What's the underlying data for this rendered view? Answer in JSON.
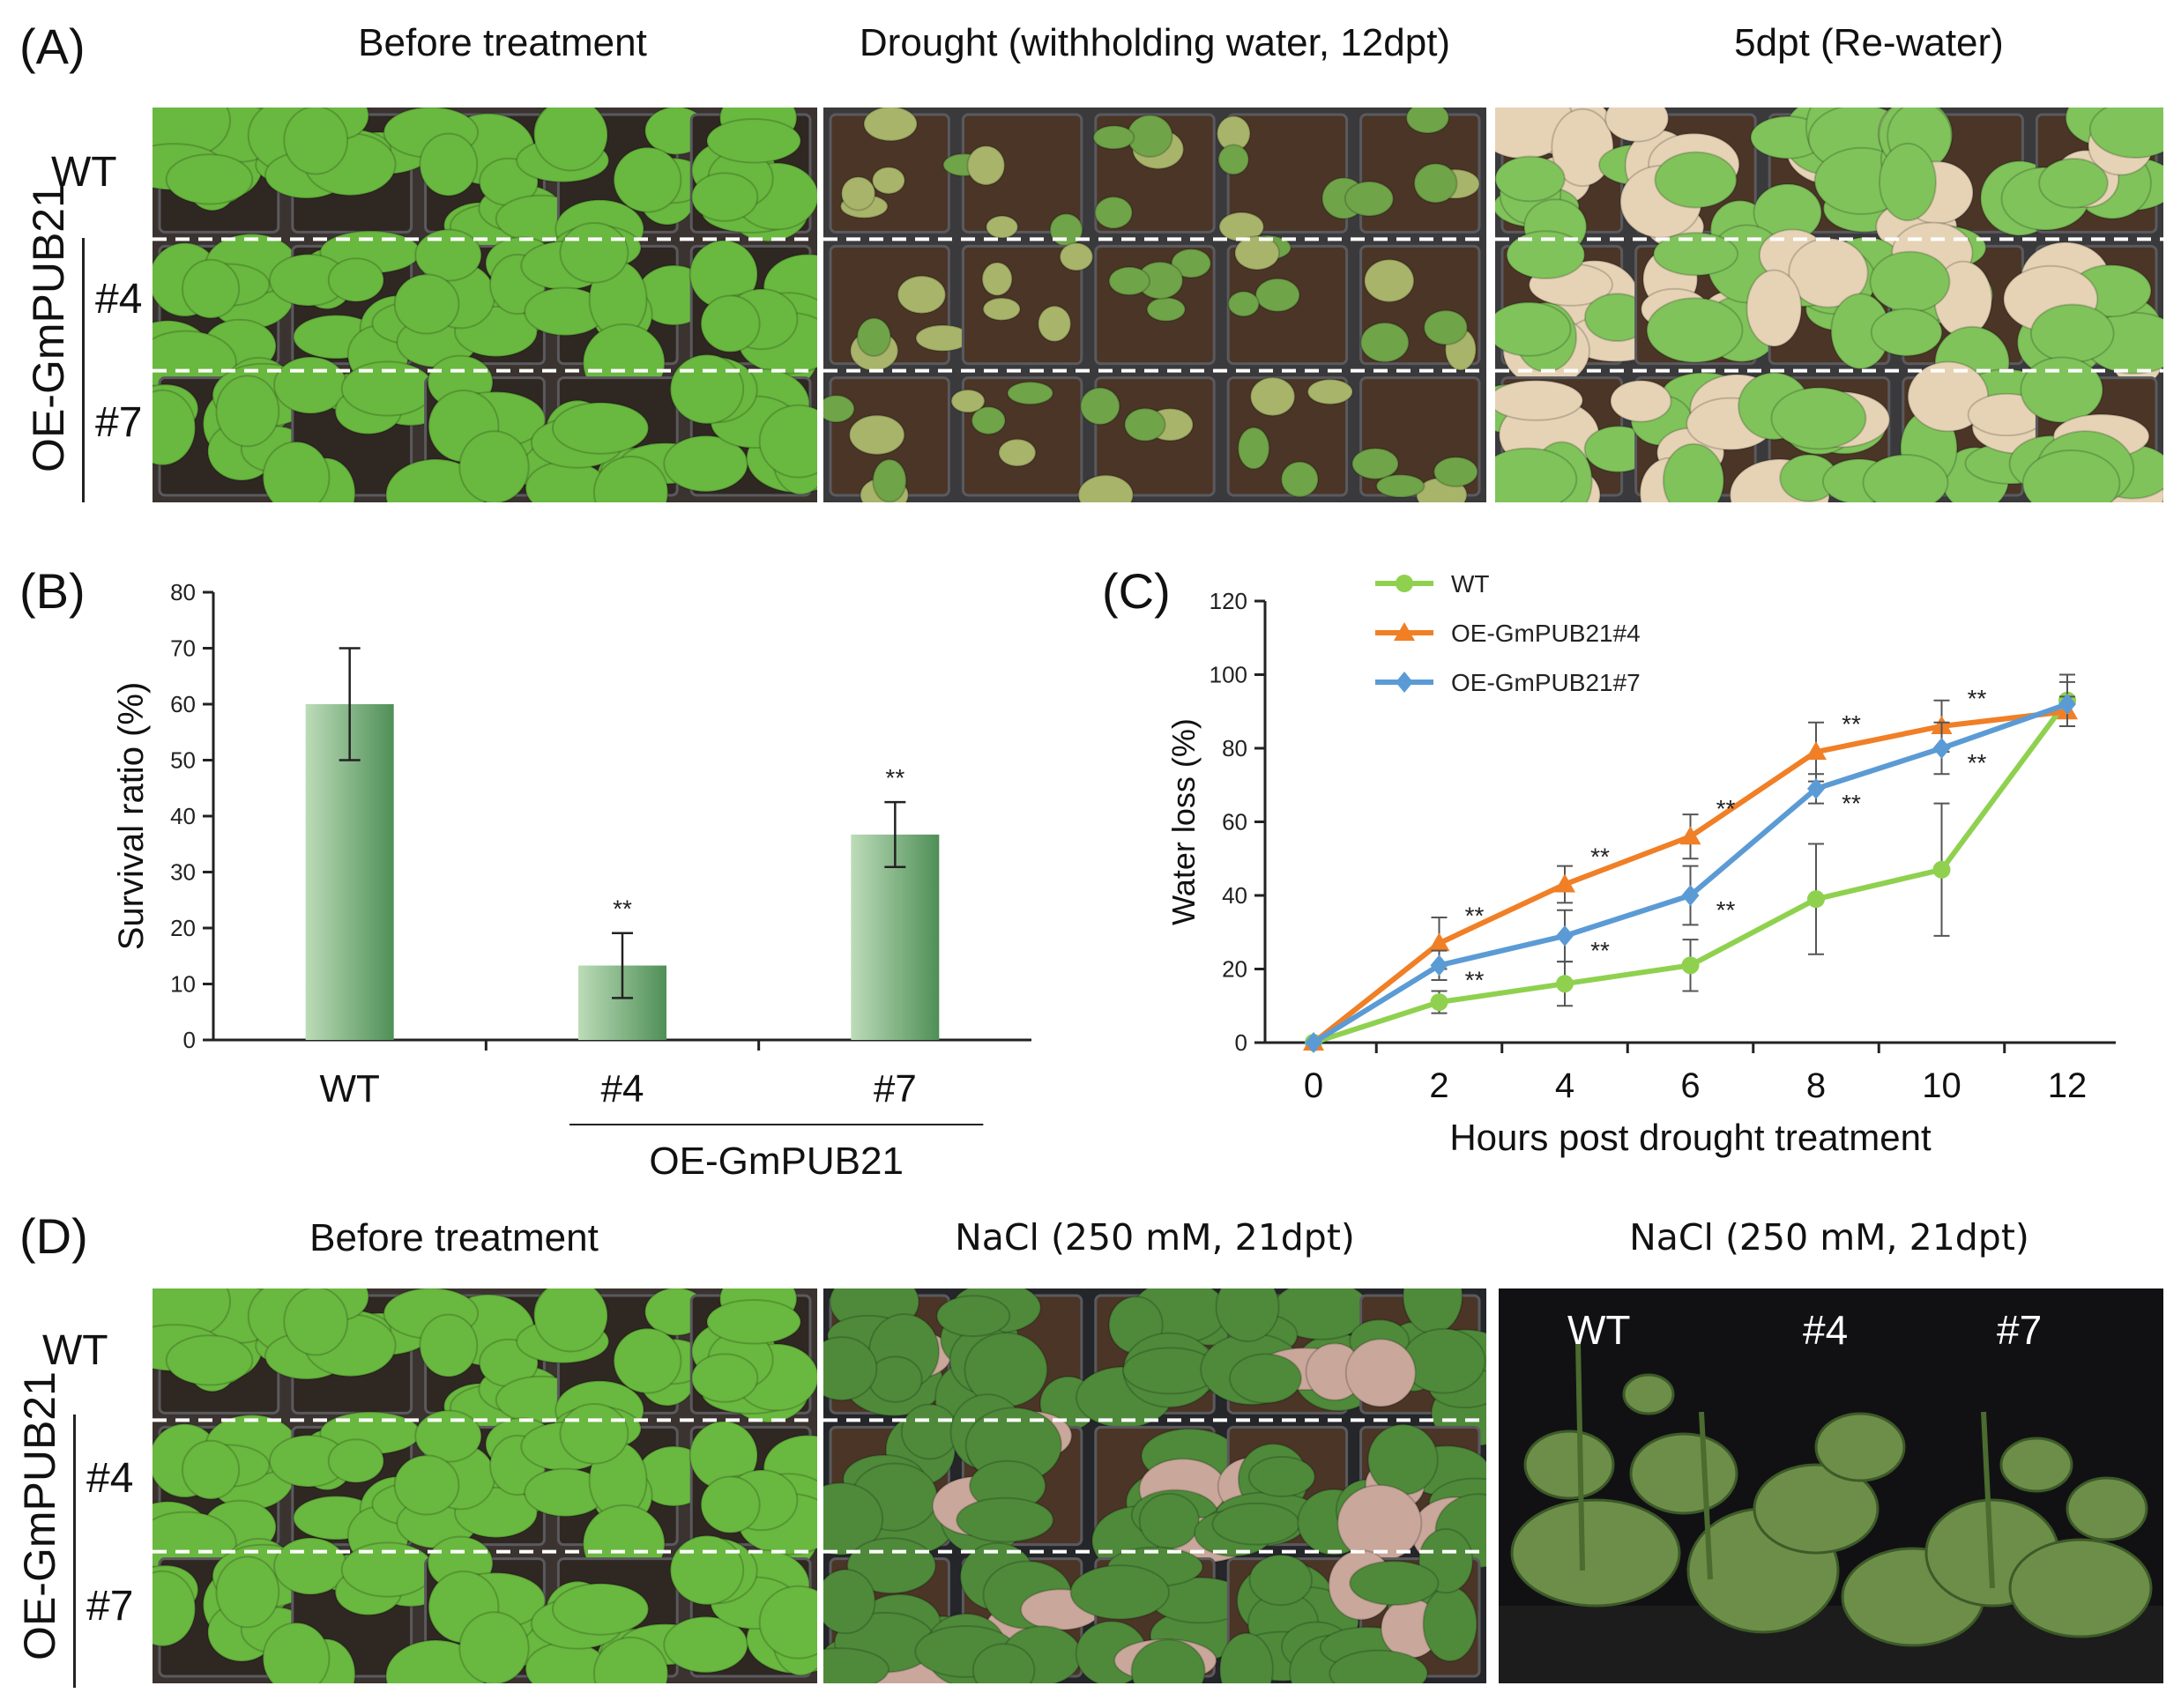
{
  "panels": {
    "A": {
      "letter": "(A)",
      "columns": [
        "Before treatment",
        "Drought (withholding water, 12dpt)",
        "5dpt (Re-water)"
      ],
      "rows": {
        "wt": "WT",
        "line4": "#4",
        "line7": "#7",
        "group": "OE-GmPUB21"
      }
    },
    "B": {
      "letter": "(B)"
    },
    "C": {
      "letter": "(C)"
    },
    "D": {
      "letter": "(D)",
      "columns": [
        "Before treatment",
        "NaCl (250 mM, 21dpt)",
        "NaCl (250 mM, 21dpt)"
      ],
      "rows": {
        "wt": "WT",
        "line4": "#4",
        "line7": "#7",
        "group": "OE-GmPUB21"
      },
      "photo_labels": [
        "WT",
        "#4",
        "#7"
      ]
    }
  },
  "colors": {
    "plant_green": "#5fae3c",
    "soil": "#3a2c22",
    "tray": "#4a4a4e",
    "bar_dark": "#4f8f57",
    "bar_light": "#bcdcb8",
    "wt_line": "#8fd14f",
    "oe4_line": "#f07f26",
    "oe7_line": "#5b9bd5"
  },
  "chart_data": [
    {
      "panel": "B",
      "type": "bar",
      "categories": [
        "WT",
        "#4",
        "#7"
      ],
      "group_label": "OE-GmPUB21",
      "values": [
        60,
        13.3,
        36.7
      ],
      "errors": [
        10,
        5.8,
        5.8
      ],
      "significance": [
        "",
        "**",
        "**"
      ],
      "ylabel": "Survival ratio (%)",
      "ylim": [
        0,
        80
      ],
      "yticks": [
        0,
        10,
        20,
        30,
        40,
        50,
        60,
        70,
        80
      ]
    },
    {
      "panel": "C",
      "type": "line",
      "x": [
        0,
        2,
        4,
        6,
        8,
        10,
        12
      ],
      "xlabel": "Hours post drought treatment",
      "ylabel": "Water loss (%)",
      "ylim": [
        0,
        120
      ],
      "yticks": [
        0,
        20,
        40,
        60,
        80,
        100,
        120
      ],
      "legend_position": "top-left",
      "series": [
        {
          "name": "WT",
          "marker": "circle",
          "values": [
            0,
            11,
            16,
            21,
            39,
            47,
            93
          ],
          "errors": [
            0,
            3,
            6,
            7,
            15,
            18,
            7
          ],
          "stars": []
        },
        {
          "name": "OE-GmPUB21#4",
          "marker": "triangle",
          "values": [
            0,
            27,
            43,
            56,
            79,
            86,
            90
          ],
          "errors": [
            0,
            7,
            5,
            6,
            8,
            7,
            4
          ],
          "stars": [
            "",
            "**",
            "**",
            "**",
            "**",
            "**",
            ""
          ]
        },
        {
          "name": "OE-GmPUB21#7",
          "marker": "diamond",
          "values": [
            0,
            21,
            29,
            40,
            69,
            80,
            92
          ],
          "errors": [
            0,
            4,
            7,
            8,
            4,
            7,
            6
          ],
          "stars": [
            "",
            "**",
            "**",
            "**",
            "**",
            "**",
            ""
          ]
        }
      ]
    }
  ]
}
